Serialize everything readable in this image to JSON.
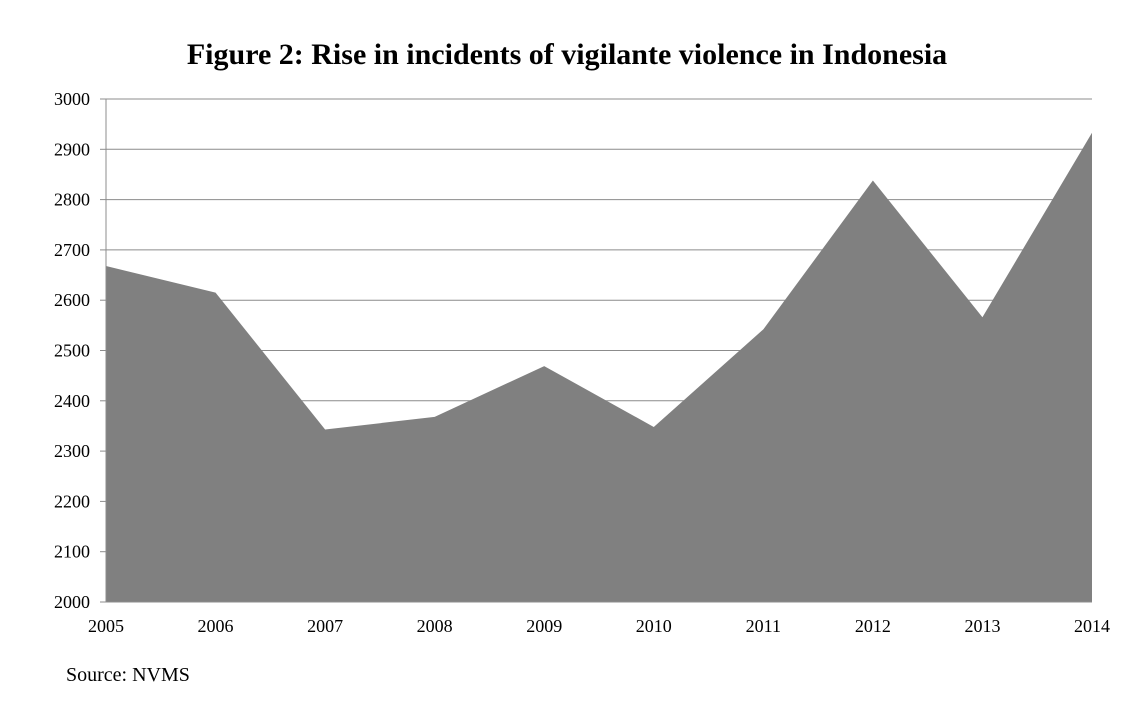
{
  "chart_data": {
    "type": "area",
    "title": "Figure 2: Rise in incidents of vigilante violence in Indonesia",
    "x": [
      "2005",
      "2006",
      "2007",
      "2008",
      "2009",
      "2010",
      "2011",
      "2012",
      "2013",
      "2014"
    ],
    "series": [
      {
        "values": [
          2668,
          2615,
          2343,
          2368,
          2469,
          2348,
          2542,
          2838,
          2566,
          2933
        ]
      }
    ],
    "ylim": [
      2000,
      3000
    ],
    "yticks": [
      "2000",
      "2100",
      "2200",
      "2300",
      "2400",
      "2500",
      "2600",
      "2700",
      "2800",
      "2900",
      "3000"
    ],
    "grid": true,
    "fill_color": "#808080",
    "source": "Source: NVMS"
  }
}
